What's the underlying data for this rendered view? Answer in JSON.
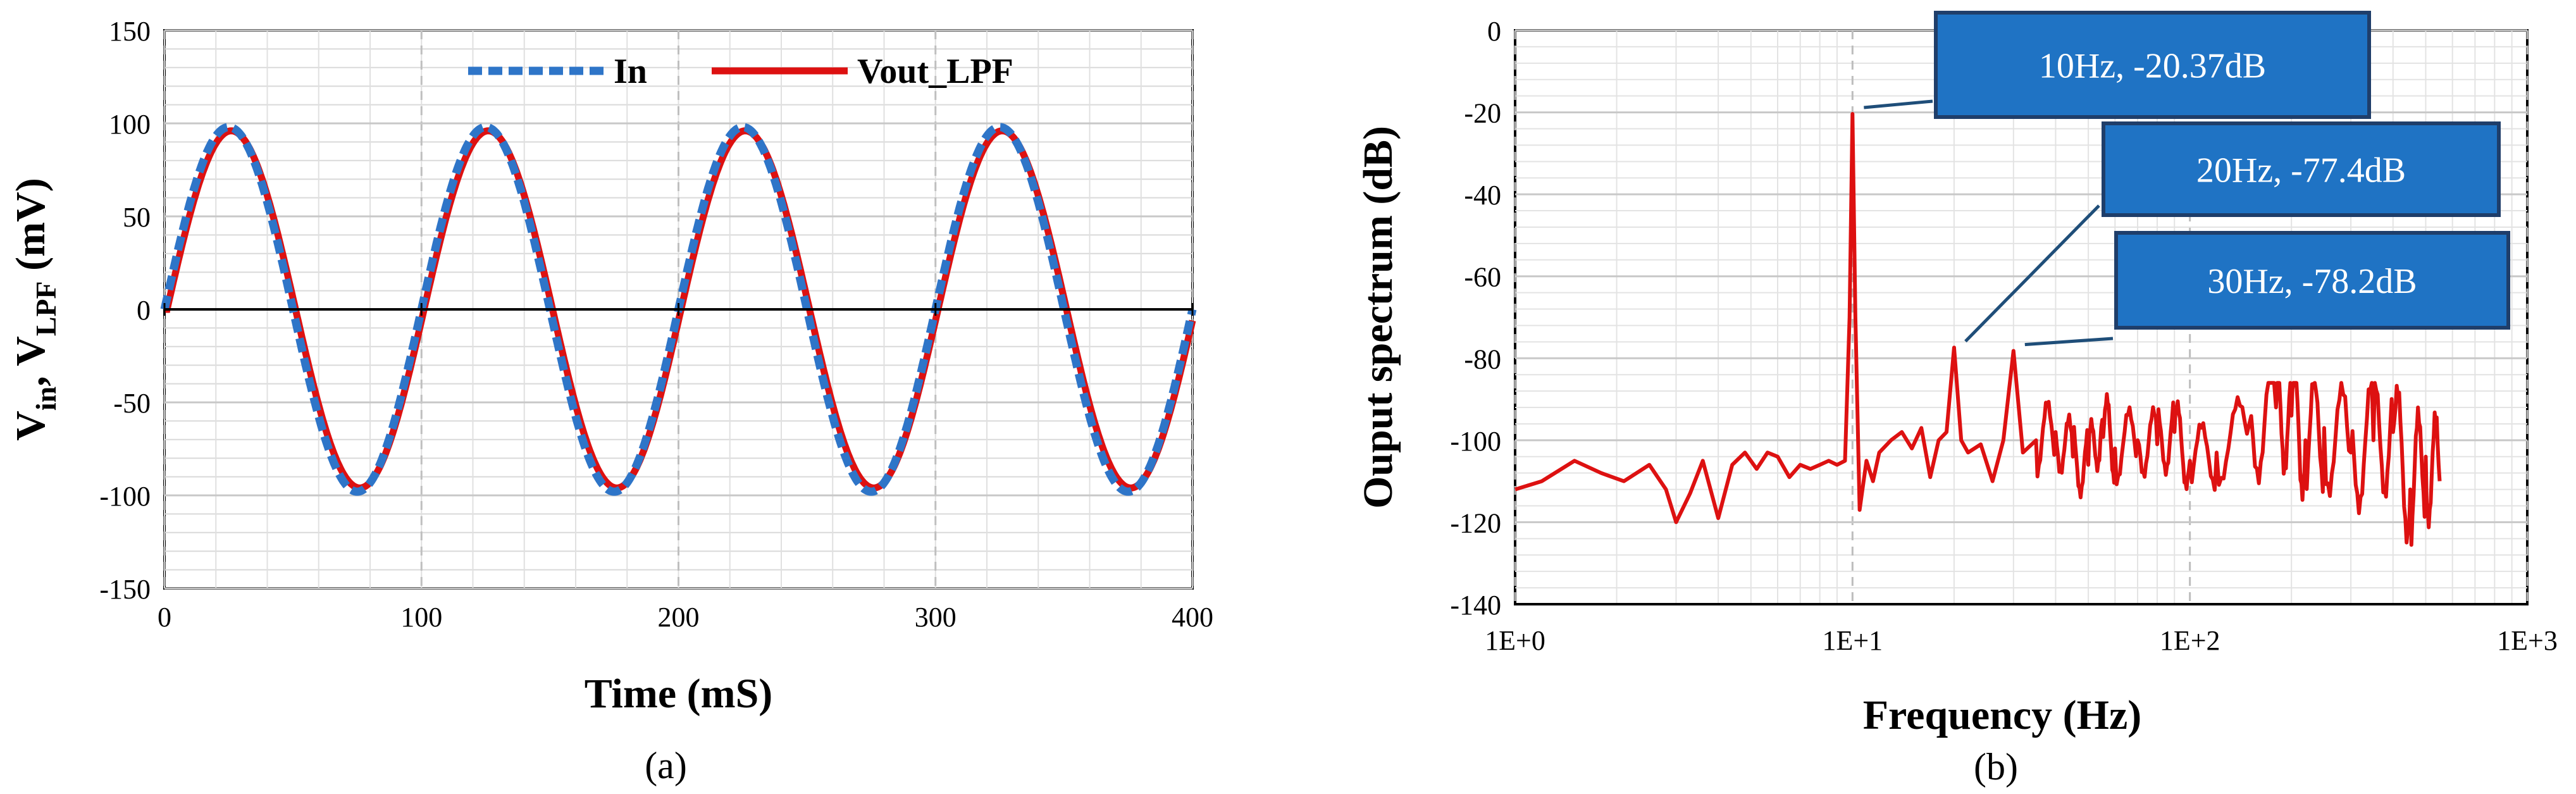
{
  "chart_data": [
    {
      "type": "line",
      "panel_label": "(a)",
      "xlabel": "Time (mS)",
      "ylabel_parts": {
        "v1": "V",
        "sub1": "in",
        "sep": ", V",
        "sub2": "LPF",
        "unit": " (mV)"
      },
      "xlim": [
        0,
        400
      ],
      "ylim": [
        -150,
        150
      ],
      "xticks": [
        0,
        100,
        200,
        300,
        400
      ],
      "yticks": [
        -150,
        -100,
        -50,
        0,
        50,
        100,
        150
      ],
      "grid": true,
      "legend_position": "top-center",
      "series": [
        {
          "name": "In",
          "color": "#2e75c8",
          "style": "dashed",
          "amplitude": 98,
          "frequency_hz": 10,
          "phase_delay_ms": 0,
          "x": [
            0,
            25,
            50,
            75,
            100,
            125,
            150,
            175,
            200,
            225,
            250,
            275,
            300,
            325,
            350,
            375,
            400
          ],
          "y": [
            0,
            98,
            0,
            -98,
            0,
            98,
            0,
            -98,
            0,
            98,
            0,
            -98,
            0,
            98,
            0,
            -98,
            0
          ]
        },
        {
          "name": "Vout_LPF",
          "color": "#dd1111",
          "style": "solid",
          "amplitude": 96,
          "frequency_hz": 10,
          "phase_delay_ms": 1,
          "x": [
            0,
            26,
            51,
            76,
            101,
            126,
            151,
            176,
            201,
            226,
            251,
            276,
            301,
            326,
            351,
            376,
            400
          ],
          "y": [
            0,
            96,
            0,
            -96,
            0,
            96,
            0,
            -96,
            0,
            96,
            0,
            -96,
            0,
            96,
            0,
            -96,
            -6
          ]
        }
      ]
    },
    {
      "type": "line",
      "panel_label": "(b)",
      "xlabel": "Frequency (Hz)",
      "ylabel": "Ouput spectrum (dB)",
      "xscale": "log",
      "xlim": [
        1,
        1000
      ],
      "ylim": [
        -140,
        0
      ],
      "xtick_labels": [
        "1E+0",
        "1E+1",
        "1E+2",
        "1E+3"
      ],
      "xtick_values": [
        1,
        10,
        100,
        1000
      ],
      "yticks": [
        -140,
        -120,
        -100,
        -80,
        -60,
        -40,
        -20,
        0
      ],
      "grid": true,
      "series": [
        {
          "color": "#dd1111",
          "x": [
            1,
            1.2,
            1.5,
            1.8,
            2.1,
            2.5,
            2.8,
            3.0,
            3.3,
            3.6,
            4.0,
            4.4,
            4.8,
            5.2,
            5.6,
            6.0,
            6.5,
            7.0,
            7.5,
            8.0,
            8.5,
            9.0,
            9.5,
            9.8,
            10.0,
            10.2,
            10.5,
            11,
            11.5,
            12,
            13,
            14,
            15,
            16,
            17,
            18,
            19,
            20,
            21,
            22,
            24,
            26,
            28,
            30,
            32,
            35,
            40,
            45,
            50,
            55,
            60,
            70,
            80,
            90,
            100,
            120,
            150,
            180,
            200,
            220,
            250,
            300,
            350,
            400,
            450,
            500,
            550
          ],
          "y": [
            -112,
            -110,
            -105,
            -108,
            -110,
            -106,
            -112,
            -120,
            -113,
            -105,
            -119,
            -106,
            -103,
            -107,
            -103,
            -104,
            -109,
            -106,
            -107,
            -106,
            -105,
            -106,
            -105,
            -70,
            -20.37,
            -70,
            -117,
            -105,
            -110,
            -103,
            -100,
            -98,
            -102,
            -97,
            -109,
            -100,
            -98,
            -77.4,
            -100,
            -103,
            -101,
            -110,
            -100,
            -78.2,
            -103,
            -100,
            -98,
            -104,
            -106,
            -95,
            -102,
            -100,
            -101,
            -98,
            -105,
            -103,
            -96,
            -92,
            -94,
            -100,
            -97,
            -103,
            -100,
            -98,
            -112,
            -104,
            -110
          ]
        },
        {
          "name": "annotations",
          "points": []
        }
      ],
      "annotations": [
        {
          "text": "10Hz, -20.37dB",
          "x": 10,
          "y": -20.37
        },
        {
          "text": "20Hz, -77.4dB",
          "x": 20,
          "y": -77.4
        },
        {
          "text": "30Hz, -78.2dB",
          "x": 30,
          "y": -78.2
        }
      ],
      "annotation_box_color": "#1f73c4"
    }
  ]
}
